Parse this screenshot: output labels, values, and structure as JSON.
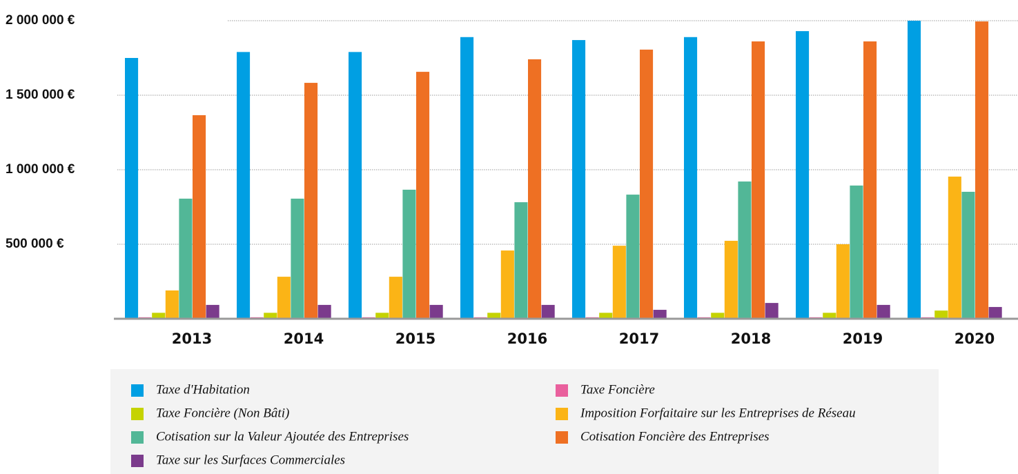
{
  "chart_data": {
    "type": "bar",
    "categories": [
      "2013",
      "2014",
      "2015",
      "2016",
      "2017",
      "2018",
      "2019",
      "2020"
    ],
    "series": [
      {
        "name": "Taxe d'Habitation",
        "color": "#009fe3",
        "values": [
          1750000,
          1790000,
          1790000,
          1890000,
          1870000,
          1890000,
          1930000,
          2000000
        ]
      },
      {
        "name": "Taxe Foncière",
        "color": "#e9609d",
        "values": [
          10000,
          10000,
          10000,
          10000,
          10000,
          10000,
          10000,
          10000
        ]
      },
      {
        "name": "Taxe Foncière (Non Bâti)",
        "color": "#c5d300",
        "values": [
          40000,
          40000,
          40000,
          40000,
          40000,
          40000,
          40000,
          55000
        ]
      },
      {
        "name": "Imposition Forfaitaire sur les Entreprises de Réseau",
        "color": "#fbb416",
        "values": [
          190000,
          282000,
          282000,
          458000,
          490000,
          523000,
          500000,
          954000
        ]
      },
      {
        "name": "Cotisation sur la Valeur Ajoutée des Entreprises",
        "color": "#52b797",
        "values": [
          806000,
          806000,
          866000,
          782000,
          833000,
          921000,
          894000,
          852000
        ]
      },
      {
        "name": "Cotisation Foncière des Entreprises",
        "color": "#ee7023",
        "values": [
          1366000,
          1583000,
          1657000,
          1741000,
          1806000,
          1861000,
          1861000,
          1995000
        ]
      },
      {
        "name": "Taxe sur les Surfaces Commerciales",
        "color": "#7b3b8c",
        "values": [
          93000,
          93000,
          93000,
          93000,
          60000,
          106000,
          93000,
          79000
        ]
      }
    ],
    "ylim": [
      0,
      2000000
    ],
    "yticks": [
      {
        "value": 500000,
        "label": "500 000 €"
      },
      {
        "value": 1000000,
        "label": "1 000 000 €"
      },
      {
        "value": 1500000,
        "label": "1 500 000 €"
      },
      {
        "value": 2000000,
        "label": "2 000 000 €"
      }
    ],
    "grid": true
  }
}
